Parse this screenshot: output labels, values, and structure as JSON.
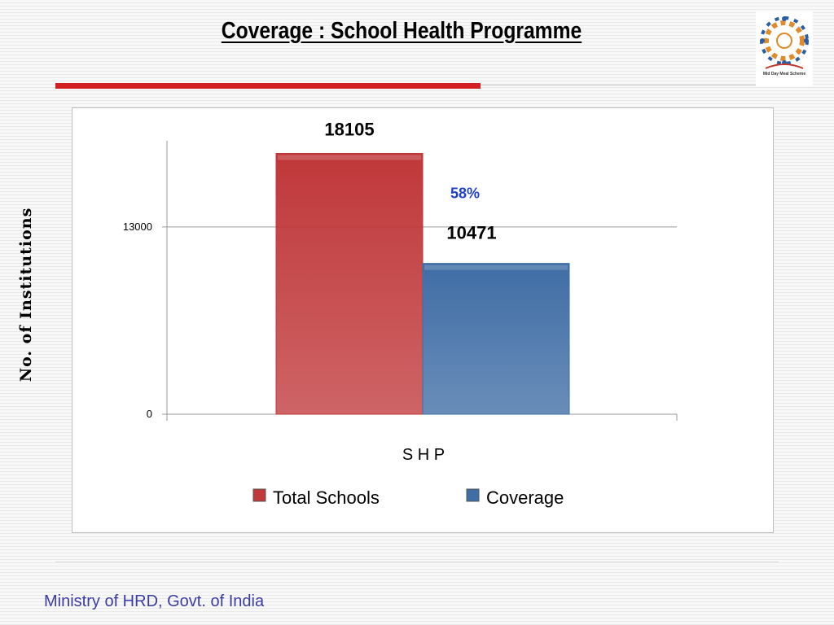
{
  "slide": {
    "title": "Coverage : School Health Programme",
    "footer": "Ministry of HRD, Govt. of India",
    "logo_caption": "Mid Day Meal Scheme"
  },
  "colors": {
    "title_rule": "#d11f24",
    "total_schools": "#c0383a",
    "coverage": "#3f6da5",
    "percent_text": "#1f3fc8",
    "footer_text": "#3c3ca6"
  },
  "chart_data": {
    "type": "bar",
    "categories": [
      "S H P"
    ],
    "series": [
      {
        "name": "Total Schools",
        "values": [
          18105
        ],
        "color": "#c0383a"
      },
      {
        "name": "Coverage",
        "values": [
          10471
        ],
        "color": "#3f6da5"
      }
    ],
    "data_labels": [
      "18105",
      "10471"
    ],
    "annotation": "58%",
    "xlabel": "S H P",
    "ylabel": "No. of Institutions",
    "yticks": [
      0,
      13000
    ],
    "ylim": [
      0,
      18980
    ],
    "grid": true,
    "legend": "bottom"
  }
}
